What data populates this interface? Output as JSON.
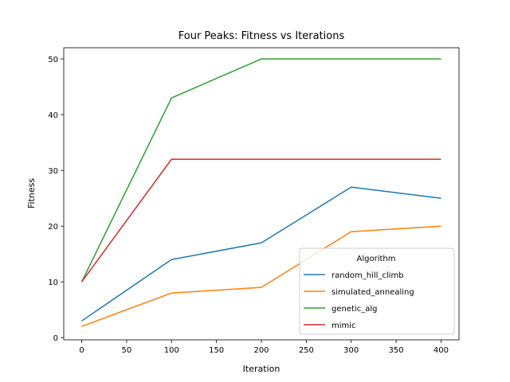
{
  "chart_data": {
    "type": "line",
    "title": "Four Peaks: Fitness vs Iterations",
    "xlabel": "Iteration",
    "ylabel": "Fitness",
    "x": [
      0,
      100,
      200,
      300,
      400
    ],
    "xlim": [
      -20,
      420
    ],
    "ylim": [
      -0.4,
      52
    ],
    "xticks": [
      0,
      50,
      100,
      150,
      200,
      250,
      300,
      350,
      400
    ],
    "yticks": [
      0,
      10,
      20,
      30,
      40,
      50
    ],
    "grid": false,
    "legend": {
      "title": "Algorithm",
      "placement": "lower-right"
    },
    "series": [
      {
        "name": "random_hill_climb",
        "color": "#1f77b4",
        "values": [
          3,
          14,
          17,
          27,
          25
        ]
      },
      {
        "name": "simulated_annealing",
        "color": "#ff7f0e",
        "values": [
          2,
          8,
          9,
          19,
          20
        ]
      },
      {
        "name": "genetic_alg",
        "color": "#2ca02c",
        "values": [
          10,
          43,
          50,
          50,
          50
        ]
      },
      {
        "name": "mimic",
        "color": "#d62728",
        "values": [
          10,
          32,
          32,
          32,
          32
        ]
      }
    ]
  }
}
